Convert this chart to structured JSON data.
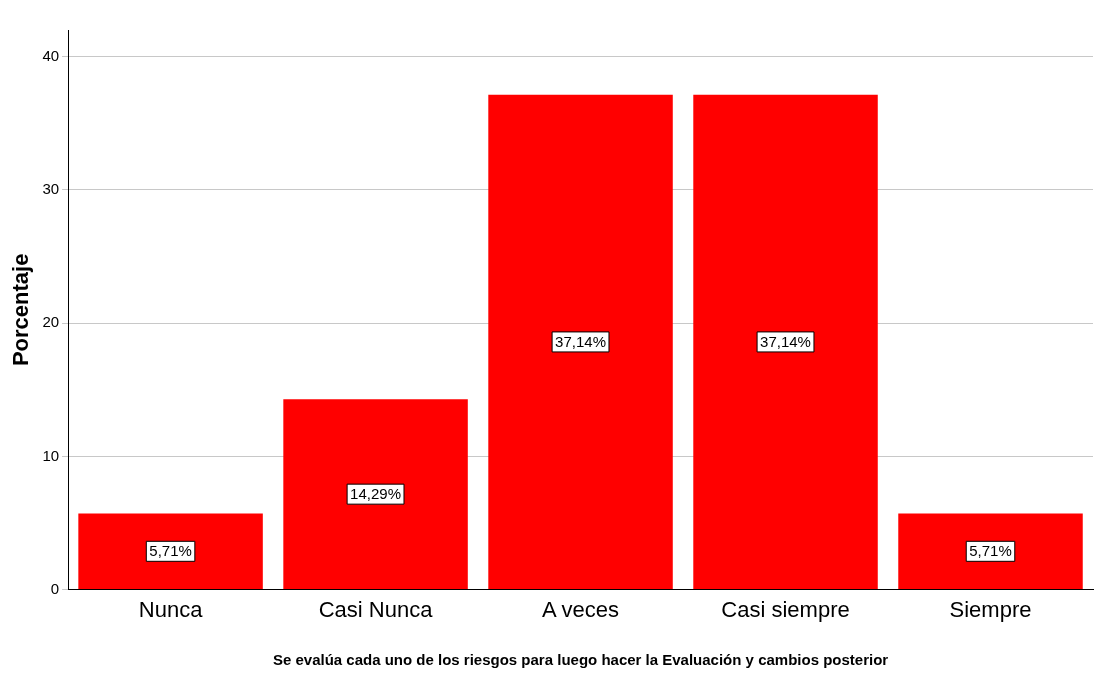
{
  "chart_data": {
    "type": "bar",
    "xlabel": "Se evalúa cada uno de los riesgos para luego hacer la Evaluación y cambios posterior",
    "ylabel": "Porcentaje",
    "categories": [
      "Nunca",
      "Casi Nunca",
      "A veces",
      "Casi siempre",
      "Siempre"
    ],
    "values": [
      5.71,
      14.29,
      37.14,
      37.14,
      5.71
    ],
    "value_labels": [
      "5,71%",
      "14,29%",
      "37,14%",
      "37,14%",
      "5,71%"
    ],
    "color": "#ff0000",
    "ylim": [
      0,
      42
    ],
    "yticks": [
      0,
      10,
      20,
      30,
      40
    ],
    "grid": "y",
    "legend": false
  }
}
